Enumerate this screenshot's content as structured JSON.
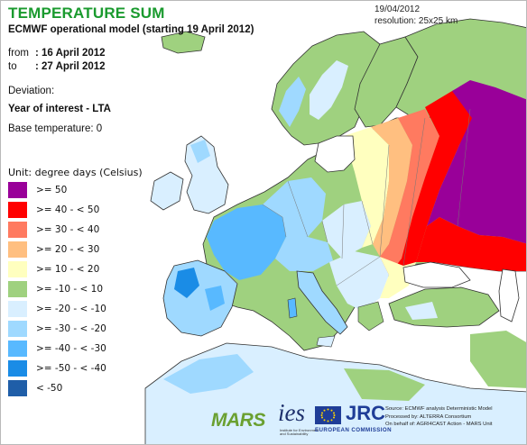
{
  "title": "TEMPERATURE SUM",
  "subtitle": "ECMWF operational model (starting 19 April 2012)",
  "date_from": {
    "label": "from",
    "value": ": 16 April 2012"
  },
  "date_to": {
    "label": "to",
    "value": ": 27 April 2012"
  },
  "meta": {
    "date": "19/04/2012",
    "resolution": "resolution: 25x25 km"
  },
  "deviation_label": "Deviation:",
  "interest_label": "Year of interest - LTA",
  "base_label": "Base temperature: 0",
  "legend": {
    "unit": "Unit: degree days (Celsius)",
    "classes": [
      {
        "label": ">= 50",
        "color": "#990099"
      },
      {
        "label": ">= 40 - < 50",
        "color": "#ff0000"
      },
      {
        "label": ">= 30 - < 40",
        "color": "#ff7a60"
      },
      {
        "label": ">= 20 - < 30",
        "color": "#ffbf80"
      },
      {
        "label": ">= 10 - < 20",
        "color": "#ffffbf"
      },
      {
        "label": ">= -10 - < 10",
        "color": "#9fd17f"
      },
      {
        "label": ">= -20 - < -10",
        "color": "#d9efff"
      },
      {
        "label": ">= -30 - < -20",
        "color": "#9fd9ff"
      },
      {
        "label": ">= -40 - < -30",
        "color": "#58b9ff"
      },
      {
        "label": ">= -50 - < -40",
        "color": "#1a8ce6"
      },
      {
        "label": "< -50",
        "color": "#1f5ea8"
      }
    ]
  },
  "map_colors": {
    "sea": "#ffffff",
    "land_neutral": "#9fd17f",
    "coast": "#333333",
    "border": "#777777"
  },
  "logos": {
    "mars": "MARS",
    "ies": "ies",
    "ies_sub": "Institute for Environment and Sustainability",
    "jrc": "JRC",
    "ec": "EUROPEAN COMMISSION"
  },
  "source_lines": [
    "Source: ECMWF analysis Deterministic Model",
    "Processed by: ALTERRA Consortium",
    "On behalf of: AGRI4CAST Action - MARS Unit"
  ]
}
